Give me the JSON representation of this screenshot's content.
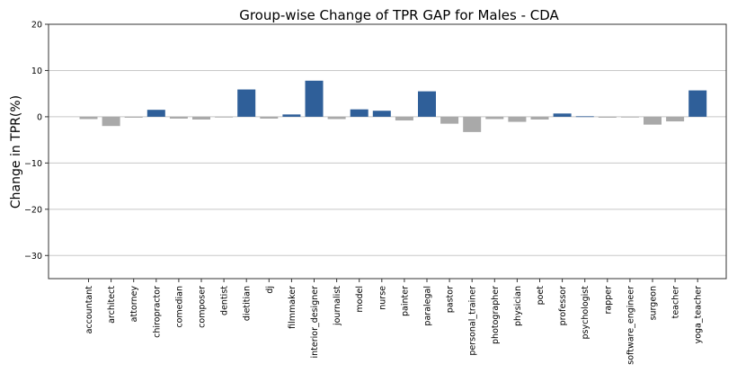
{
  "chart_data": {
    "type": "bar",
    "title": "Group-wise Change of TPR GAP for Males - CDA",
    "xlabel": "",
    "ylabel": "Change in TPR(%)",
    "ylim": [
      -35,
      20
    ],
    "yticks": [
      20,
      10,
      0,
      -10,
      -20,
      -30
    ],
    "ytick_labels": [
      "20",
      "10",
      "0",
      "−10",
      "−20",
      "−30"
    ],
    "grid": "horizontal",
    "colors": {
      "positive": "#2f5f99",
      "negative": "#a9a9a9"
    },
    "categories": [
      "accountant",
      "architect",
      "attorney",
      "chiropractor",
      "comedian",
      "composer",
      "dentist",
      "dietitian",
      "dj",
      "filmmaker",
      "interior_designer",
      "journalist",
      "model",
      "nurse",
      "painter",
      "paralegal",
      "pastor",
      "personal_trainer",
      "photographer",
      "physician",
      "poet",
      "professor",
      "psychologist",
      "rapper",
      "software_engineer",
      "surgeon",
      "teacher",
      "yoga_teacher"
    ],
    "values": [
      -0.5,
      -2.0,
      -0.2,
      1.5,
      -0.4,
      -0.6,
      -0.1,
      5.9,
      -0.4,
      0.5,
      7.8,
      -0.5,
      1.6,
      1.3,
      -0.8,
      5.5,
      -1.5,
      -3.3,
      -0.5,
      -1.1,
      -0.6,
      0.7,
      0.1,
      -0.2,
      -0.1,
      -1.7,
      -1.0,
      5.7
    ]
  }
}
